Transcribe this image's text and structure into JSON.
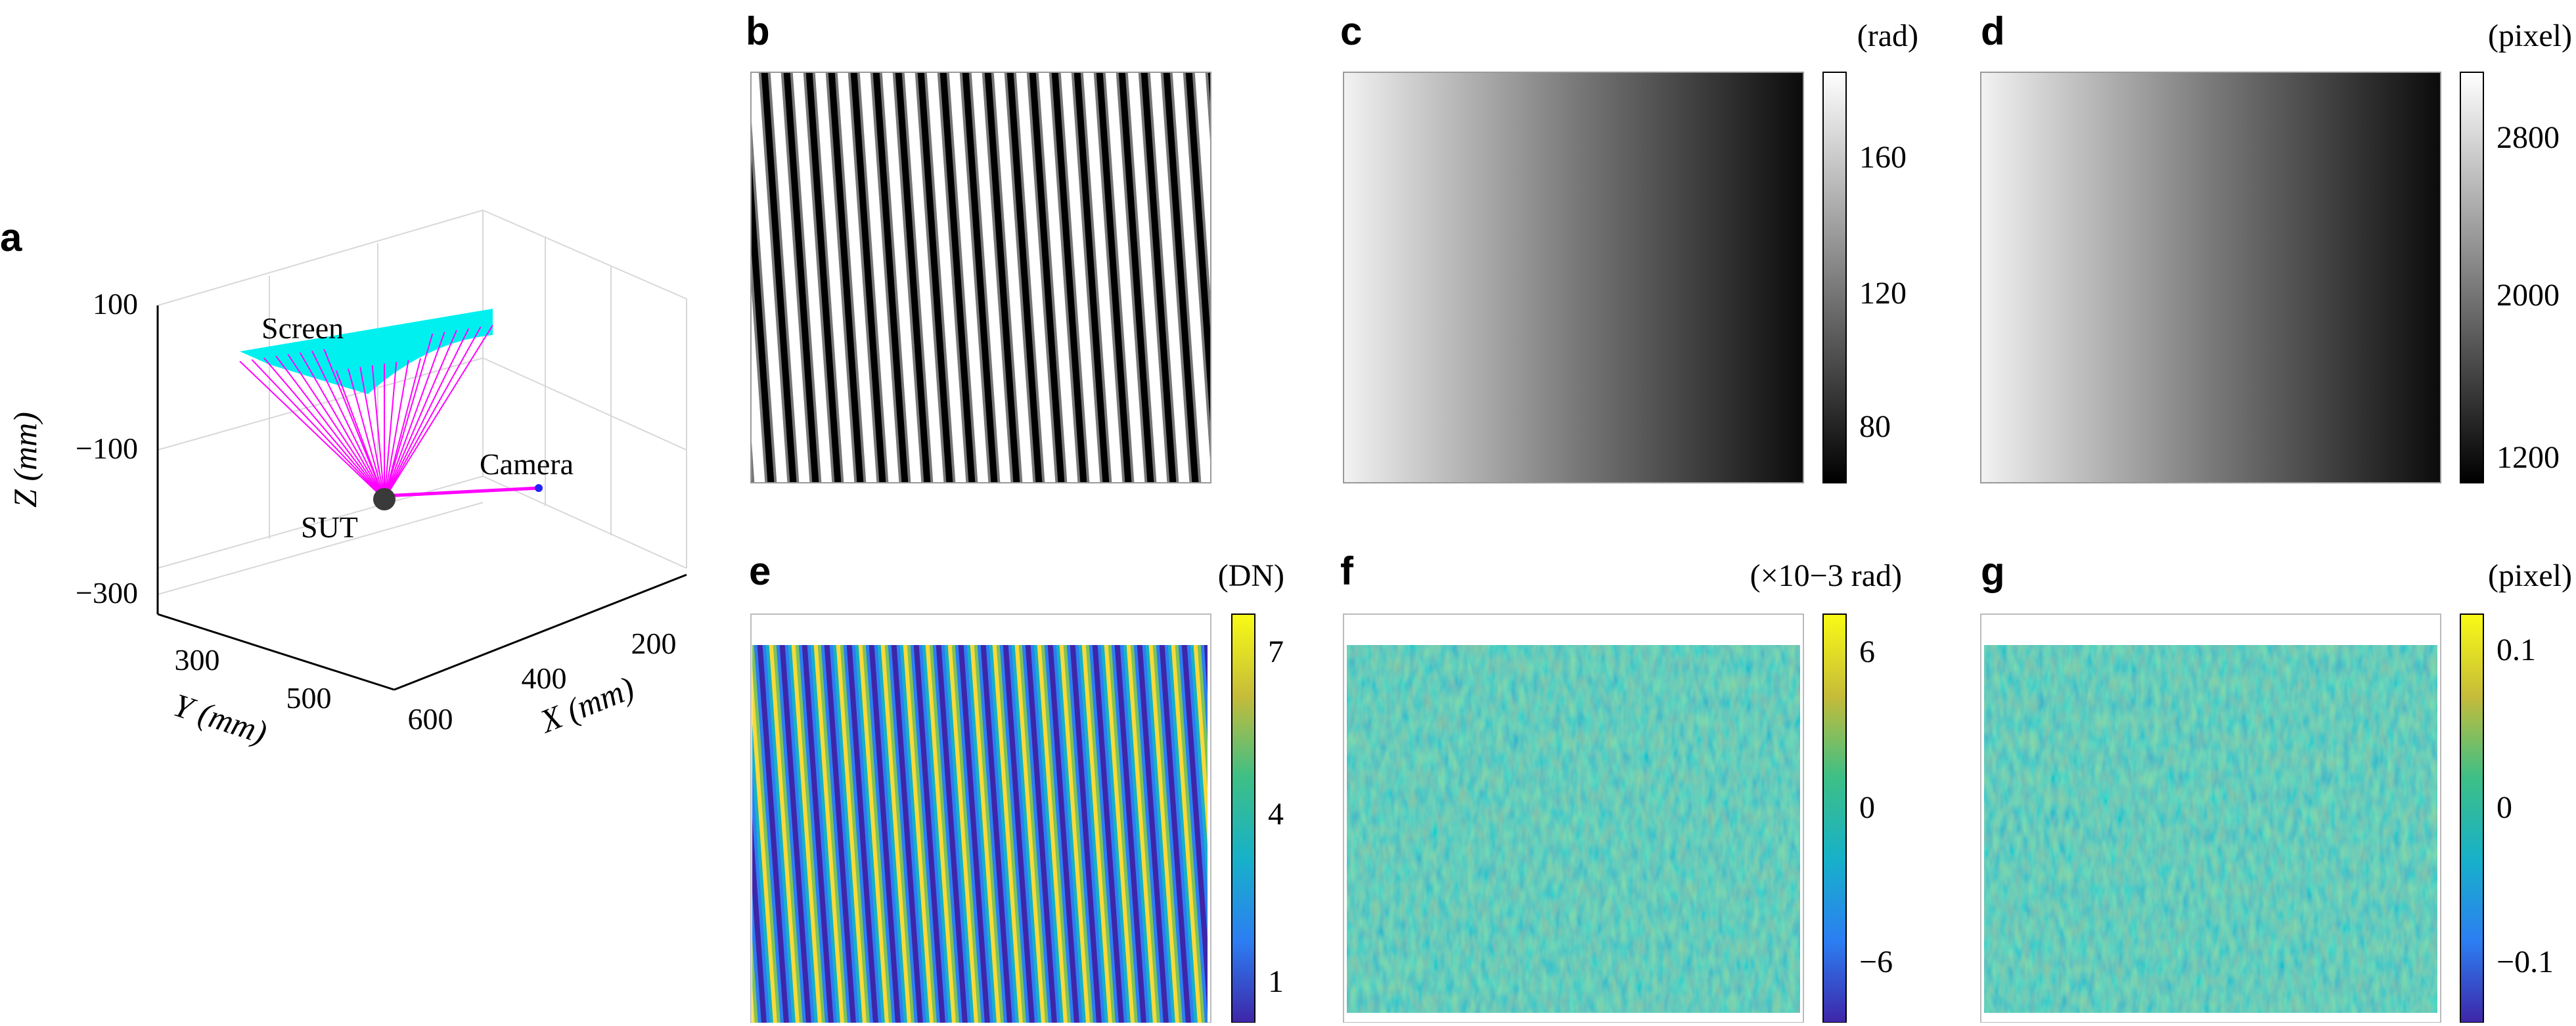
{
  "panels": {
    "a": {
      "letter": "a",
      "z_label": "Z (mm)",
      "y_label": "Y (mm)",
      "x_label": "X (mm)",
      "z_ticks": [
        "100",
        "−100",
        "−300"
      ],
      "y_ticks": [
        "300",
        "500",
        "600"
      ],
      "x_ticks": [
        "200",
        "400"
      ],
      "labels": {
        "screen": "Screen",
        "camera": "Camera",
        "sut": "SUT"
      },
      "colors": {
        "screen": "#00f0f0",
        "rays": "#ff00ff",
        "camera_point": "#2222ff",
        "sut": "#333333"
      }
    },
    "b": {
      "letter": "b"
    },
    "c": {
      "letter": "c",
      "unit": "(rad)",
      "ticks": [
        "160",
        "120",
        "80"
      ],
      "colormap": "gray"
    },
    "d": {
      "letter": "d",
      "unit": "(pixel)",
      "ticks": [
        "2800",
        "2000",
        "1200"
      ],
      "colormap": "gray"
    },
    "e": {
      "letter": "e",
      "unit": "(DN)",
      "ticks": [
        "7",
        "4",
        "1"
      ],
      "colormap": "parula"
    },
    "f": {
      "letter": "f",
      "unit": "(×10−3 rad)",
      "ticks": [
        "6",
        "0",
        "−6"
      ],
      "colormap": "parula"
    },
    "g": {
      "letter": "g",
      "unit": "(pixel)",
      "ticks": [
        "0.1",
        "0",
        "−0.1"
      ],
      "colormap": "parula"
    }
  }
}
